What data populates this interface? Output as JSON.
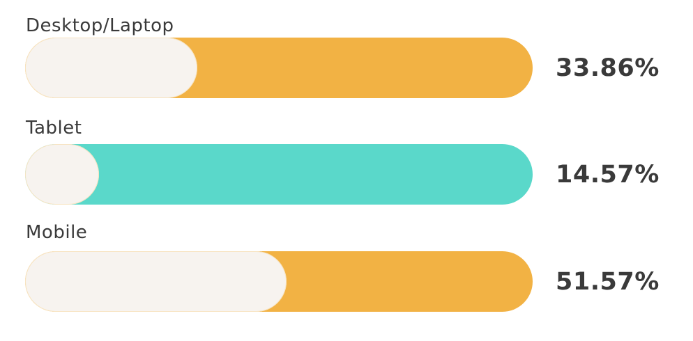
{
  "chart_data": {
    "type": "bar",
    "orientation": "horizontal",
    "categories": [
      "Desktop/Laptop",
      "Tablet",
      "Mobile"
    ],
    "values": [
      33.86,
      14.57,
      51.57
    ],
    "value_labels": [
      "33.86%",
      "14.57%",
      "51.57%"
    ],
    "colors": [
      "#f2b244",
      "#5ad8ca",
      "#f2b244"
    ],
    "fill_color": "#f7f3ef",
    "xlim": [
      0,
      100
    ],
    "grid": false,
    "legend": "none"
  }
}
